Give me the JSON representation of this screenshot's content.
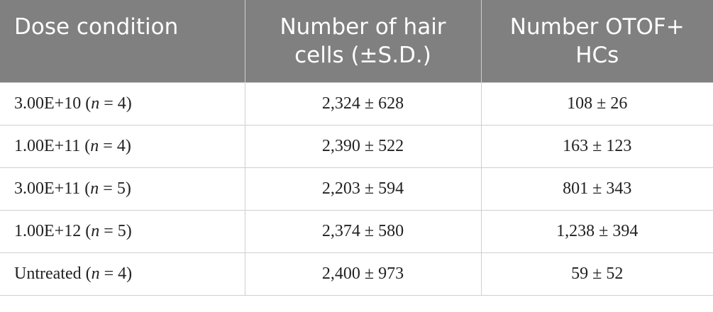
{
  "table": {
    "header": [
      "Dose condition",
      "Number of hair cells (±S.D.)",
      "Number OTOF+ HCs"
    ],
    "rows": [
      [
        [
          "3.00E+10 (",
          "n",
          " = 4)"
        ],
        "2,324 ± 628",
        "108 ± 26"
      ],
      [
        [
          "1.00E+11 (",
          "n",
          " = 4)"
        ],
        "2,390 ± 522",
        "163 ± 123"
      ],
      [
        [
          "3.00E+11 (",
          "n",
          " = 5)"
        ],
        "2,203 ± 594",
        "801 ± 343"
      ],
      [
        [
          "1.00E+12 (",
          "n",
          " = 5)"
        ],
        "2,374 ± 580",
        "1,238 ± 394"
      ],
      [
        [
          "Untreated (",
          "n",
          " = 4)"
        ],
        "2,400 ± 973",
        "59 ± 52"
      ]
    ]
  }
}
